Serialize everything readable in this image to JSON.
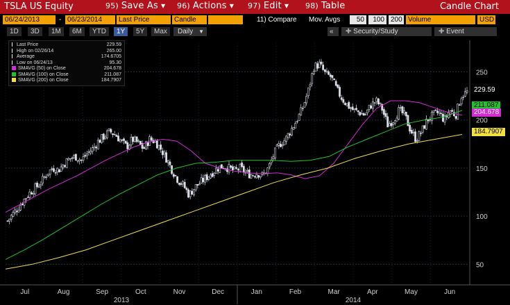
{
  "header": {
    "ticker": "TSLA US Equity",
    "menu": [
      {
        "num": "95)",
        "label": "Save As"
      },
      {
        "num": "96)",
        "label": "Actions"
      },
      {
        "num": "97)",
        "label": "Edit"
      },
      {
        "num": "98)",
        "label": "Table"
      }
    ],
    "chart_name": "Candle Chart"
  },
  "toolbar": {
    "start_date": "06/24/2013",
    "separator": "-",
    "end_date": "06/23/2014",
    "price_field": "Last Price",
    "chart_type": "Candle",
    "compare": "11) Compare",
    "mov_avgs": "Mov. Avgs",
    "ma1": "50",
    "ma2": "100",
    "ma3": "200",
    "volume": "Volume",
    "currency": "USD"
  },
  "timeframe": {
    "buttons": [
      "1D",
      "3D",
      "1M",
      "6M",
      "YTD",
      "1Y",
      "5Y",
      "Max"
    ],
    "active": "1Y",
    "period": "Daily",
    "collapse": "«",
    "security_study": "Security/Study",
    "event": "Event"
  },
  "legend": [
    {
      "label": "Last Price",
      "value": "229.59",
      "color": "#ffffff"
    },
    {
      "label": "High on 02/26/14",
      "value": "265.00",
      "color": "#ffffff"
    },
    {
      "label": "Average",
      "value": "174.6705",
      "color": "#ffffff"
    },
    {
      "label": "Low on 06/24/13",
      "value": "95.30",
      "color": "#ffffff"
    },
    {
      "label": "SMAVG (50) on Close",
      "value": "204.678",
      "color": "#d42bd4"
    },
    {
      "label": "SMAVG (100) on Close",
      "value": "211.087",
      "color": "#22c22e"
    },
    {
      "label": "SMAVG (200) on Close",
      "value": "184.7907",
      "color": "#f0e040"
    }
  ],
  "price_tags": [
    {
      "value": "229.59",
      "bg": "#000000",
      "fg": "#ffffff"
    },
    {
      "value": "211.087",
      "bg": "#22c22e",
      "fg": "#000000"
    },
    {
      "value": "204.678",
      "bg": "#d42bd4",
      "fg": "#ffffff"
    },
    {
      "value": "184.7907",
      "bg": "#f0e040",
      "fg": "#000000"
    }
  ],
  "chart_data": {
    "type": "candlestick",
    "ylim": [
      30,
      280
    ],
    "yticks": [
      "50",
      "100",
      "150",
      "200",
      "250"
    ],
    "month_labels": [
      "Jul",
      "Aug",
      "Sep",
      "Oct",
      "Nov",
      "Dec",
      "Jan",
      "Feb",
      "Mar",
      "Apr",
      "May",
      "Jun"
    ],
    "year_labels": [
      "2013",
      "2014"
    ],
    "close_path": [
      95,
      103,
      110,
      118,
      125,
      130,
      136,
      145,
      150,
      148,
      155,
      160,
      162,
      158,
      165,
      170,
      178,
      183,
      188,
      185,
      178,
      172,
      180,
      176,
      170,
      180,
      178,
      170,
      160,
      148,
      138,
      132,
      122,
      130,
      135,
      140,
      145,
      150,
      152,
      150,
      147,
      150,
      145,
      143,
      145,
      142,
      150,
      165,
      175,
      180,
      190,
      200,
      212,
      230,
      255,
      258,
      248,
      245,
      232,
      222,
      215,
      210,
      208,
      205,
      215,
      220,
      212,
      195,
      200,
      210,
      205,
      190,
      180,
      188,
      200,
      205,
      208,
      200,
      210,
      205,
      225,
      229
    ],
    "series": [
      {
        "name": "SMAVG (50) on Close",
        "color": "#d42bd4",
        "values": [
          104,
          112,
          120,
          128,
          135,
          142,
          150,
          158,
          165,
          172,
          177,
          180,
          178,
          168,
          155,
          150,
          147,
          145,
          144,
          145,
          143,
          139,
          142,
          155,
          175,
          195,
          212,
          220,
          220,
          218,
          213,
          208,
          205
        ]
      },
      {
        "name": "SMAVG (100) on Close",
        "color": "#22c22e",
        "values": [
          55,
          65,
          76,
          88,
          100,
          112,
          123,
          133,
          143,
          150,
          155,
          156,
          158,
          158,
          158,
          157,
          158,
          162,
          172,
          180,
          188,
          196,
          200,
          203,
          210
        ]
      },
      {
        "name": "SMAVG (200) on Close",
        "color": "#f0e040",
        "values": [
          45,
          50,
          57,
          65,
          75,
          85,
          95,
          105,
          115,
          125,
          135,
          143,
          150,
          160,
          168,
          175,
          180,
          185
        ]
      }
    ]
  }
}
